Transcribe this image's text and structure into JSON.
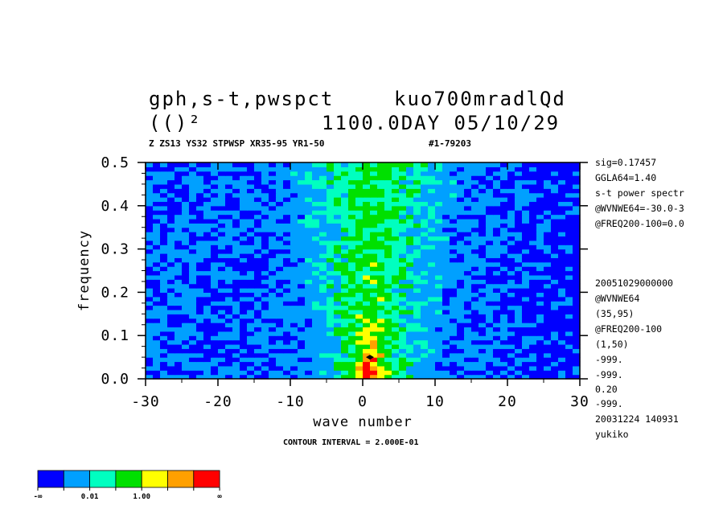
{
  "header": {
    "title_line1_left": "gph,s-t,pwspct",
    "title_line1_right": "kuo700mradlQd",
    "title_line2_left": "(()²",
    "title_line2_right": "1100.0DAY 05/10/29",
    "subtitle_left": "Z ZS13 YS32 STPWSP XR35-95 YR1-50",
    "subtitle_right": "#1-79203"
  },
  "side_info": [
    "sig=0.17457",
    "GGLA64=1.40",
    "s-t power spectr",
    "@WVNWE64=-30.0-3",
    "@FREQ200-100=0.0",
    "",
    "",
    "20051029000000",
    "@WVNWE64",
    "(35,95)",
    "@FREQ200-100",
    "(1,50)",
    "-999.",
    "-999.",
    "0.20",
    "-999.",
    "20031224 140931",
    "yukiko"
  ],
  "contour_interval": "CONTOUR INTERVAL = 2.000E-01",
  "colorbar": {
    "colors": [
      "#0000ff",
      "#00a0ff",
      "#00ffc0",
      "#00e000",
      "#ffff00",
      "#ffa000",
      "#ff0000"
    ],
    "labels": [
      "-∞",
      "0.01",
      "1.00",
      "∞"
    ]
  },
  "chart_data": {
    "type": "heatmap",
    "title": "gph,s-t,pwspct",
    "xlabel": "wave number",
    "ylabel": "frequency",
    "xlim": [
      -30,
      30
    ],
    "ylim": [
      0.0,
      0.5
    ],
    "x_ticks": [
      -30,
      -20,
      -10,
      0,
      10,
      20,
      30
    ],
    "x_tick_labels": [
      "-30",
      "-20",
      "-10",
      "0",
      "10",
      "20",
      "30"
    ],
    "y_ticks": [
      0.0,
      0.1,
      0.2,
      0.3,
      0.4,
      0.5
    ],
    "y_tick_labels": [
      "0.0",
      "0.1",
      "0.2",
      "0.3",
      "0.4",
      "0.5"
    ],
    "color_levels": [
      "-inf..0.01",
      "0.01..",
      "..1.00",
      "1.00..",
      "higher",
      "higher2",
      "max"
    ],
    "description": "Log power spectrum: green/cyan band centered near wave number 0-5 with peak (yellow/orange) at low frequency near wavenumber 0-1; blue at large |k|.",
    "peak": {
      "x": 1,
      "y": 0.05
    },
    "grid": false
  }
}
